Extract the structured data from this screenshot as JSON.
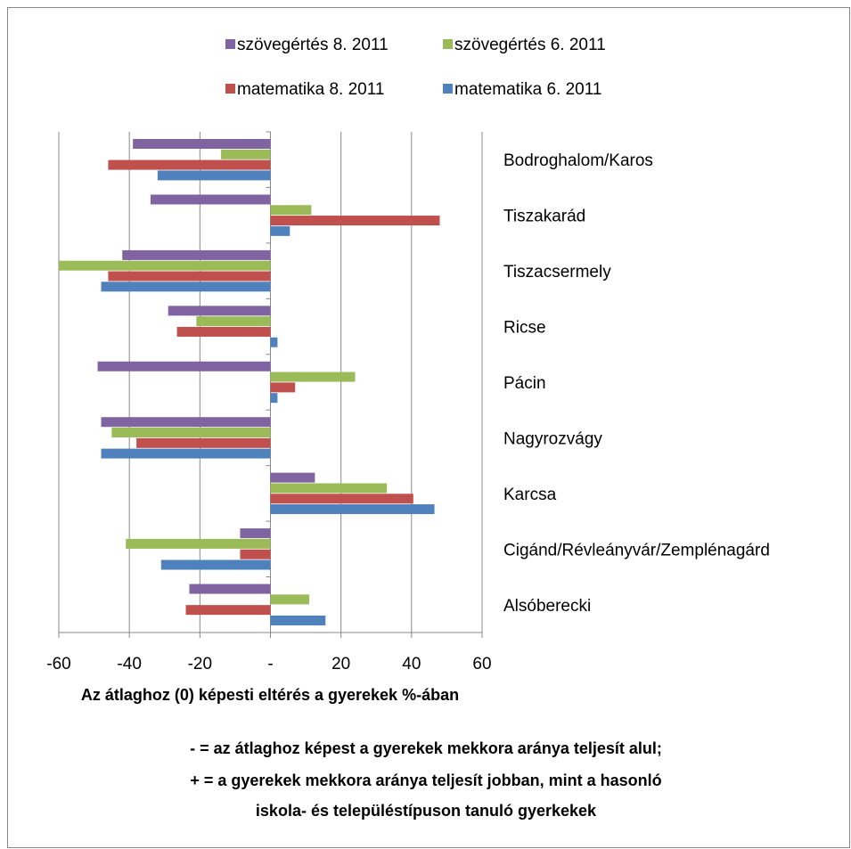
{
  "chart_data": {
    "type": "hbar",
    "categories": [
      "Bodroghalom/Karos",
      "Tiszakarád",
      "Tiszacsermely",
      "Ricse",
      "Pácin",
      "Nagyrozvágy",
      "Karcsa",
      "Cigánd/Révleányvár/Zemplénagárd",
      "Alsóberecki"
    ],
    "series": [
      {
        "name": "szövegértés 8. 2011",
        "color": "#8064a2",
        "values": [
          -39,
          -34,
          -42,
          -29,
          -49,
          -48,
          12.6,
          -8.6,
          -23
        ]
      },
      {
        "name": "szövegértés 6. 2011",
        "color": "#9bbb59",
        "values": [
          -14,
          11.6,
          -60,
          -21,
          24,
          -45,
          33,
          -41,
          11
        ]
      },
      {
        "name": "matematika 8. 2011",
        "color": "#c0504d",
        "values": [
          -46,
          48,
          -46,
          -26.5,
          7,
          -38,
          40.5,
          -8.6,
          -24
        ]
      },
      {
        "name": "matematika 6. 2011",
        "color": "#4f81bd",
        "values": [
          -32,
          5.5,
          -48,
          2,
          2,
          -48,
          46.5,
          -31,
          15.6
        ]
      }
    ],
    "xlim": [
      -60,
      60
    ],
    "xticks": [
      -60,
      -40,
      -20,
      {
        "value": 0,
        "label": "-"
      },
      20,
      40,
      60
    ],
    "xlabel": "Az átlaghoz (0) képesti eltérés a gyerekek %-ában",
    "annotations": [
      "- = az átlaghoz képest a gyerekek mekkora aránya teljesít alul;",
      "+ = a gyerekek mekkora aránya teljesít jobban, mint a hasonló",
      "iskola- és településtípuson tanuló gyerkekek"
    ],
    "grid": true
  }
}
